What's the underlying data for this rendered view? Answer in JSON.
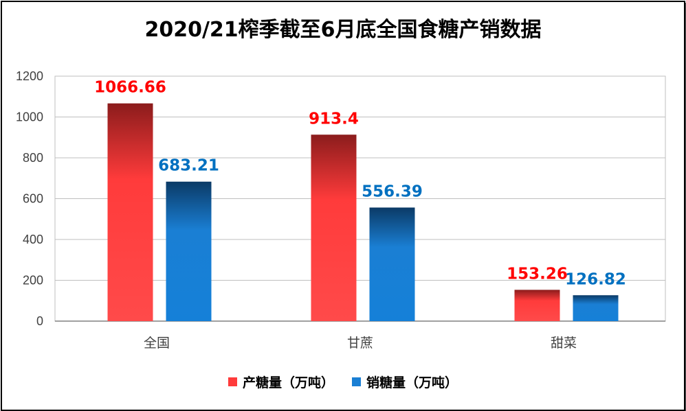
{
  "chart_data": {
    "type": "bar",
    "title": "2020/21榨季截至6月底全国食糖产销数据",
    "categories": [
      "全国",
      "甘蔗",
      "甜菜"
    ],
    "series": [
      {
        "name": "产糖量（万吨）",
        "values": [
          1066.66,
          913.4,
          153.26
        ],
        "label_color": "#ff0000",
        "color_top": "#8b1c1c",
        "color_main": "#ff3b3b"
      },
      {
        "name": "销糖量（万吨）",
        "values": [
          683.21,
          556.39,
          126.82
        ],
        "label_color": "#0070c0",
        "color_top": "#0b3a66",
        "color_main": "#1a7fd4"
      }
    ],
    "yticks": [
      0,
      200,
      400,
      600,
      800,
      1000,
      1200
    ],
    "ylim": [
      0,
      1200
    ],
    "grid": true,
    "legend_position": "bottom"
  }
}
